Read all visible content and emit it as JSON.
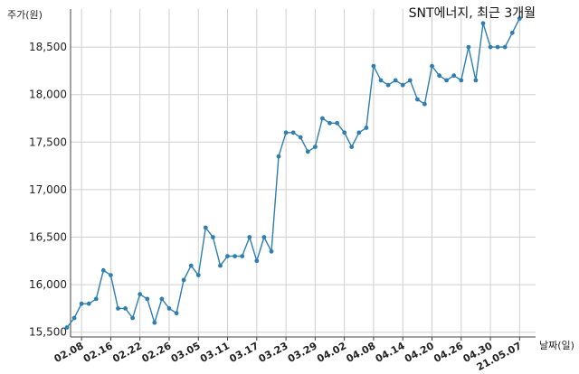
{
  "chart_data": {
    "type": "line",
    "title": "SNT에너지, 최근 3개월",
    "ylabel": "주가(원)",
    "xlabel": "날짜(일)",
    "ylim": [
      15450,
      18900
    ],
    "yticks": [
      15500,
      16000,
      16500,
      17000,
      17500,
      18000,
      18500
    ],
    "ytick_labels": [
      "15,500",
      "16,000",
      "16,500",
      "17,000",
      "17,500",
      "18,000",
      "18,500"
    ],
    "grid": true,
    "color": "#2e7eb0",
    "xticks": [
      {
        "label": "02.08",
        "index": 2
      },
      {
        "label": "02.16",
        "index": 6
      },
      {
        "label": "02.22",
        "index": 10
      },
      {
        "label": "02.26",
        "index": 14
      },
      {
        "label": "03.05",
        "index": 18
      },
      {
        "label": "03.11",
        "index": 22
      },
      {
        "label": "03.17",
        "index": 26
      },
      {
        "label": "03.23",
        "index": 30
      },
      {
        "label": "03.29",
        "index": 34
      },
      {
        "label": "04.02",
        "index": 38
      },
      {
        "label": "04.08",
        "index": 42
      },
      {
        "label": "04.14",
        "index": 46
      },
      {
        "label": "04.20",
        "index": 50
      },
      {
        "label": "04.26",
        "index": 54
      },
      {
        "label": "04.30",
        "index": 58
      },
      {
        "label": "21.05.07",
        "index": 62
      }
    ],
    "values": [
      15550,
      15650,
      15800,
      15800,
      15850,
      16150,
      16100,
      15750,
      15750,
      15650,
      15900,
      15850,
      15600,
      15850,
      15750,
      15700,
      16050,
      16200,
      16100,
      16600,
      16500,
      16200,
      16300,
      16300,
      16300,
      16500,
      16250,
      16500,
      16350,
      17350,
      17600,
      17600,
      17550,
      17400,
      17450,
      17750,
      17700,
      17700,
      17600,
      17450,
      17600,
      17650,
      18300,
      18150,
      18100,
      18150,
      18100,
      18150,
      17950,
      17900,
      18300,
      18200,
      18150,
      18200,
      18150,
      18500,
      18150,
      18750,
      18500,
      18500,
      18500,
      18650,
      18800
    ]
  }
}
